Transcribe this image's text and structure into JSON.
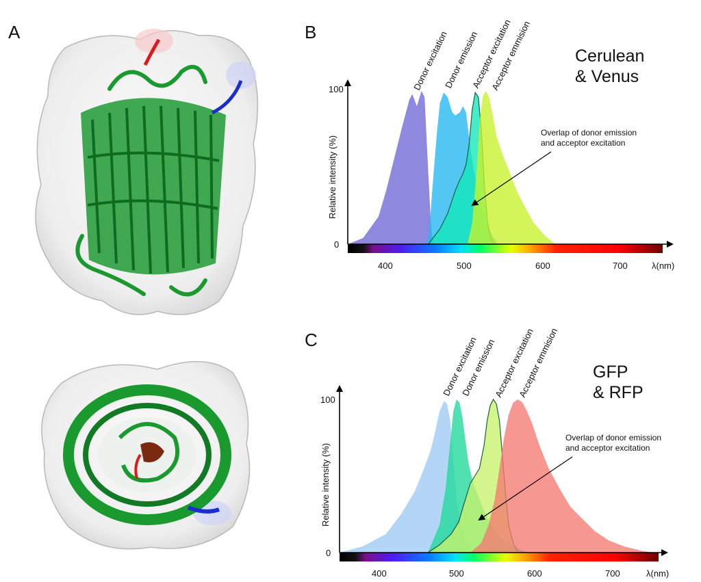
{
  "panels": {
    "A": {
      "letter": "A"
    },
    "B": {
      "letter": "B"
    },
    "C": {
      "letter": "C"
    }
  },
  "chart_data": [
    {
      "panel": "B",
      "type": "area",
      "title": "Cerulean\n& Venus",
      "ylabel": "Relative intensity (%)",
      "xlabel": "λ(nm)",
      "xlim": [
        350,
        760
      ],
      "ylim": [
        0,
        100
      ],
      "x_ticks": [
        400,
        500,
        600,
        700
      ],
      "y_ticks": [
        0,
        100
      ],
      "curve_labels": [
        "Donor excitation",
        "Donor emission",
        "Acceptor excitation",
        "Acceptor emmision"
      ],
      "annotation": "Overlap of donor emission\nand acceptor excitation",
      "series": [
        {
          "name": "Donor excitation",
          "color": "#6f67d6",
          "x": [
            350,
            370,
            390,
            400,
            410,
            420,
            430,
            434,
            440,
            446,
            450,
            454,
            458,
            460,
            462
          ],
          "y": [
            0,
            4,
            18,
            35,
            55,
            75,
            94,
            98,
            90,
            100,
            96,
            55,
            15,
            5,
            0
          ]
        },
        {
          "name": "Donor emission",
          "color": "#22b7ef",
          "x": [
            452,
            456,
            460,
            466,
            470,
            475,
            480,
            486,
            490,
            496,
            500,
            504,
            506,
            510,
            514,
            520,
            526,
            534,
            540,
            546
          ],
          "y": [
            0,
            8,
            35,
            72,
            92,
            99,
            96,
            86,
            84,
            86,
            90,
            86,
            78,
            62,
            48,
            35,
            22,
            10,
            4,
            0
          ]
        },
        {
          "name": "Acceptor excitation",
          "color": "#11e8b8",
          "x": [
            455,
            470,
            480,
            490,
            496,
            500,
            504,
            508,
            512,
            516,
            520,
            524,
            528,
            532,
            536,
            540
          ],
          "y": [
            0,
            10,
            20,
            35,
            42,
            46,
            52,
            65,
            88,
            99,
            96,
            74,
            38,
            14,
            4,
            0
          ]
        },
        {
          "name": "Acceptor emmision",
          "color": "#c6f22a",
          "x": [
            506,
            512,
            518,
            522,
            526,
            530,
            534,
            538,
            544,
            552,
            560,
            570,
            580,
            592,
            606,
            620
          ],
          "y": [
            0,
            14,
            50,
            82,
            97,
            100,
            96,
            86,
            70,
            58,
            48,
            35,
            25,
            14,
            6,
            0
          ]
        }
      ]
    },
    {
      "panel": "C",
      "type": "area",
      "title": "GFP\n& RFP",
      "ylabel": "Relative intensity (%)",
      "xlabel": "λ(nm)",
      "xlim": [
        350,
        765
      ],
      "ylim": [
        0,
        100
      ],
      "x_ticks": [
        400,
        500,
        600,
        700
      ],
      "y_ticks": [
        0,
        100
      ],
      "curve_labels": [
        "Donor excitation",
        "Donor emission",
        "Acceptor excitation",
        "Acceptor emmision"
      ],
      "annotation": "Overlap of donor emission\nand acceptor excitation",
      "series": [
        {
          "name": "Donor excitation",
          "color": "#9dcaf3",
          "x": [
            350,
            380,
            410,
            430,
            448,
            460,
            468,
            474,
            480,
            486,
            490,
            494,
            498,
            502,
            508,
            514,
            520,
            526,
            532,
            540
          ],
          "y": [
            0,
            4,
            12,
            25,
            40,
            55,
            66,
            78,
            92,
            99,
            97,
            86,
            60,
            35,
            18,
            8,
            4,
            2,
            1,
            0
          ]
        },
        {
          "name": "Donor emission",
          "color": "#20d89a",
          "x": [
            465,
            480,
            488,
            494,
            498,
            502,
            506,
            510,
            514,
            518,
            524,
            532,
            540,
            550,
            560,
            575,
            585,
            595
          ],
          "y": [
            0,
            18,
            42,
            72,
            92,
            100,
            98,
            88,
            72,
            58,
            45,
            35,
            25,
            16,
            10,
            5,
            2,
            0
          ]
        },
        {
          "name": "Acceptor excitation",
          "color": "#c6f26a",
          "x": [
            465,
            480,
            495,
            505,
            512,
            520,
            526,
            532,
            538,
            542,
            546,
            550,
            554,
            558,
            562,
            566,
            570,
            576,
            582
          ],
          "y": [
            0,
            5,
            12,
            20,
            32,
            45,
            50,
            55,
            70,
            86,
            96,
            100,
            97,
            86,
            62,
            38,
            18,
            6,
            0
          ]
        },
        {
          "name": "Acceptor emmision",
          "color": "#f37a72",
          "x": [
            520,
            534,
            544,
            552,
            558,
            564,
            570,
            576,
            582,
            588,
            594,
            600,
            610,
            622,
            636,
            650,
            666,
            682,
            700,
            720,
            745,
            760
          ],
          "y": [
            0,
            6,
            18,
            35,
            55,
            75,
            90,
            98,
            100,
            98,
            92,
            85,
            70,
            55,
            42,
            30,
            22,
            14,
            8,
            4,
            1,
            0
          ]
        }
      ]
    }
  ]
}
